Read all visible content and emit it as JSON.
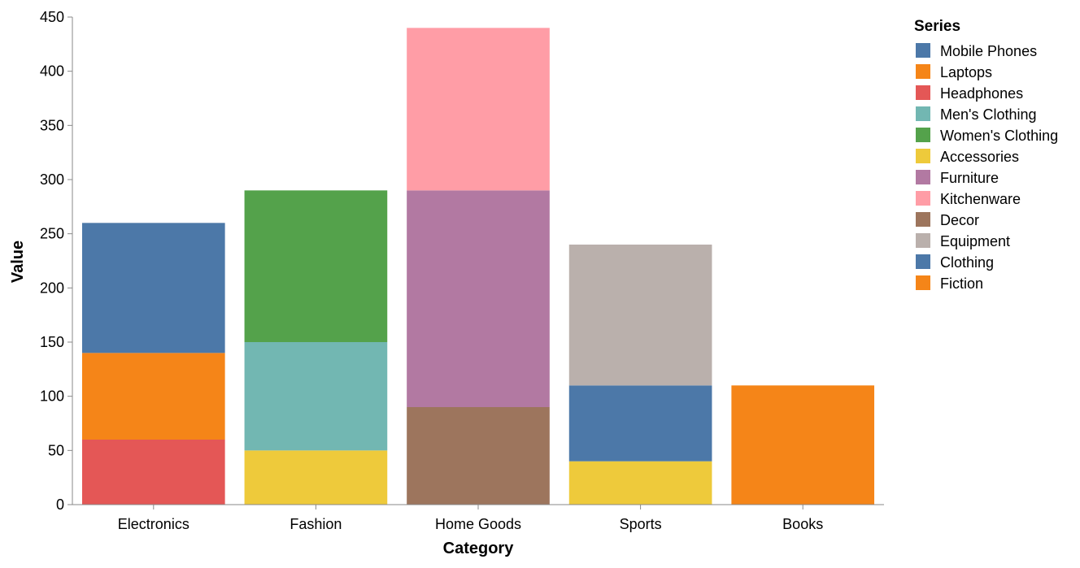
{
  "chart_data": {
    "type": "bar",
    "stacked": true,
    "categories": [
      "Electronics",
      "Fashion",
      "Home Goods",
      "Sports",
      "Books"
    ],
    "xlabel": "Category",
    "ylabel": "Value",
    "ylim": [
      0,
      450
    ],
    "yticks": [
      0,
      50,
      100,
      150,
      200,
      250,
      300,
      350,
      400,
      450
    ],
    "grid": false,
    "legend": {
      "title": "Series",
      "position": "right"
    },
    "series": [
      {
        "name": "Mobile Phones",
        "color": "#4c78a8",
        "values": [
          120,
          0,
          0,
          0,
          0
        ]
      },
      {
        "name": "Laptops",
        "color": "#f58518",
        "values": [
          80,
          0,
          0,
          0,
          0
        ]
      },
      {
        "name": "Headphones",
        "color": "#e45756",
        "values": [
          60,
          0,
          0,
          0,
          0
        ]
      },
      {
        "name": "Men's Clothing",
        "color": "#72b7b2",
        "values": [
          0,
          100,
          0,
          0,
          0
        ]
      },
      {
        "name": "Women's Clothing",
        "color": "#54a24b",
        "values": [
          0,
          140,
          0,
          0,
          0
        ]
      },
      {
        "name": "Accessories",
        "color": "#eeca3b",
        "values": [
          0,
          50,
          0,
          40,
          0
        ]
      },
      {
        "name": "Furniture",
        "color": "#b279a2",
        "values": [
          0,
          0,
          200,
          0,
          0
        ]
      },
      {
        "name": "Kitchenware",
        "color": "#ff9da6",
        "values": [
          0,
          0,
          150,
          0,
          0
        ]
      },
      {
        "name": "Decor",
        "color": "#9d755d",
        "values": [
          0,
          0,
          90,
          0,
          0
        ]
      },
      {
        "name": "Equipment",
        "color": "#bab0ac",
        "values": [
          0,
          0,
          0,
          130,
          0
        ]
      },
      {
        "name": "Clothing",
        "color": "#4c78a8",
        "values": [
          0,
          0,
          0,
          70,
          0
        ]
      },
      {
        "name": "Fiction",
        "color": "#f58518",
        "values": [
          0,
          0,
          0,
          0,
          110
        ]
      }
    ],
    "stack_order": [
      [
        "Headphones",
        "Laptops",
        "Mobile Phones"
      ],
      [
        "Accessories",
        "Men's Clothing",
        "Women's Clothing"
      ],
      [
        "Decor",
        "Furniture",
        "Kitchenware"
      ],
      [
        "Accessories",
        "Clothing",
        "Equipment"
      ],
      [
        "Fiction"
      ]
    ]
  }
}
